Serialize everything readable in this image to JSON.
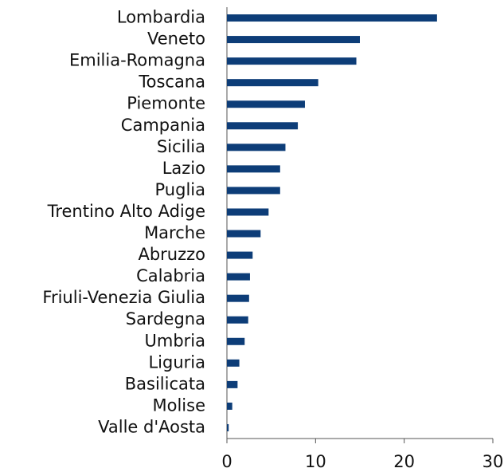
{
  "chart_data": {
    "type": "hbar",
    "categories": [
      "Lombardia",
      "Veneto",
      "Emilia-Romagna",
      "Toscana",
      "Piemonte",
      "Campania",
      "Sicilia",
      "Lazio",
      "Puglia",
      "Trentino Alto Adige",
      "Marche",
      "Abruzzo",
      "Calabria",
      "Friuli-Venezia Giulia",
      "Sardegna",
      "Umbria",
      "Liguria",
      "Basilicata",
      "Molise",
      "Valle d'Aosta"
    ],
    "values": [
      23.7,
      15.0,
      14.6,
      10.3,
      8.8,
      8.0,
      6.6,
      6.0,
      6.0,
      4.7,
      3.8,
      2.9,
      2.6,
      2.5,
      2.4,
      2.0,
      1.4,
      1.2,
      0.6,
      0.2
    ],
    "color": "#0d3d78",
    "xlim": [
      0,
      30
    ],
    "xticks": [
      0,
      10,
      20,
      30
    ],
    "grid": false
  }
}
